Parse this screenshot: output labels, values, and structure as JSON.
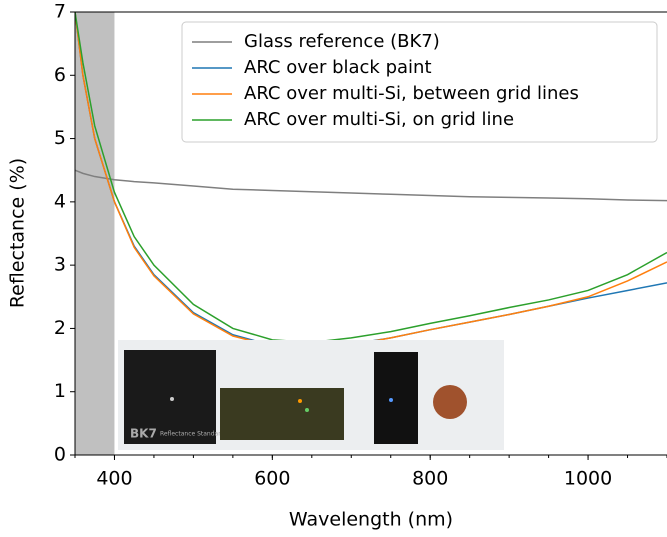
{
  "chart_data": {
    "type": "line",
    "x_label": "Wavelength (nm)",
    "y_label": "Reflectance (%)",
    "x": [
      350,
      360,
      375,
      400,
      425,
      450,
      500,
      550,
      600,
      650,
      700,
      750,
      800,
      850,
      900,
      950,
      1000,
      1050,
      1100
    ],
    "series": [
      {
        "name": "Glass reference (BK7)",
        "color": "#7f7f7f",
        "values": [
          4.5,
          4.45,
          4.4,
          4.35,
          4.32,
          4.3,
          4.25,
          4.2,
          4.18,
          4.16,
          4.14,
          4.12,
          4.1,
          4.08,
          4.07,
          4.06,
          4.05,
          4.03,
          4.02
        ]
      },
      {
        "name": "ARC over black paint",
        "color": "#1f77b4",
        "values": [
          7.0,
          6.0,
          5.0,
          4.0,
          3.3,
          2.85,
          2.25,
          1.9,
          1.73,
          1.7,
          1.75,
          1.85,
          1.98,
          2.1,
          2.22,
          2.35,
          2.48,
          2.6,
          2.72
        ]
      },
      {
        "name": "ARC over multi-Si, between grid lines",
        "color": "#ff7f0e",
        "values": [
          7.0,
          6.0,
          5.0,
          4.0,
          3.28,
          2.83,
          2.23,
          1.88,
          1.72,
          1.68,
          1.74,
          1.85,
          1.98,
          2.1,
          2.22,
          2.35,
          2.5,
          2.75,
          3.05
        ]
      },
      {
        "name": "ARC over multi-Si, on grid line",
        "color": "#2ca02c",
        "values": [
          7.0,
          6.2,
          5.2,
          4.15,
          3.45,
          3.0,
          2.38,
          2.0,
          1.82,
          1.78,
          1.85,
          1.95,
          2.08,
          2.2,
          2.33,
          2.45,
          2.6,
          2.85,
          3.2
        ]
      }
    ],
    "xlim": [
      350,
      1100
    ],
    "ylim": [
      0,
      7
    ],
    "xticks": [
      400,
      600,
      800,
      1000
    ],
    "yticks": [
      0,
      1,
      2,
      3,
      4,
      5,
      6,
      7
    ],
    "shaded_x": [
      350,
      400
    ],
    "shade_color": "#c0c0c0",
    "legend": "upper right",
    "inset_text": [
      "BK7",
      "Reflectance Standard"
    ]
  }
}
